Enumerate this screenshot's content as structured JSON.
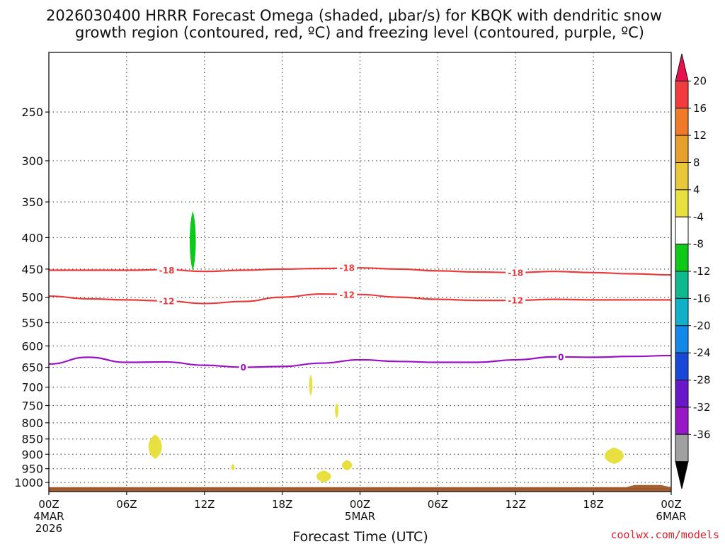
{
  "chart_data": {
    "type": "heatmap",
    "title_line1": "2026030400 HRRR Forecast Omega (shaded, μbar/s) for KBQK with dendritic snow",
    "title_line2": "growth region (contoured, red, ºC) and freezing level (contoured, purple, ºC)",
    "xlabel": "Forecast Time (UTC)",
    "credit": "coolwx.com/models",
    "x_range_hours": [
      0,
      48
    ],
    "y_levels_hpa": [
      250,
      300,
      350,
      400,
      450,
      500,
      550,
      600,
      650,
      700,
      750,
      800,
      850,
      900,
      950,
      1000
    ],
    "y_range_hpa": [
      200,
      1035
    ],
    "x_ticks": [
      {
        "hour": 0,
        "label": "00Z",
        "sub1": "4MAR",
        "sub2": "2026"
      },
      {
        "hour": 6,
        "label": "06Z"
      },
      {
        "hour": 12,
        "label": "12Z"
      },
      {
        "hour": 18,
        "label": "18Z"
      },
      {
        "hour": 24,
        "label": "00Z",
        "sub1": "5MAR"
      },
      {
        "hour": 30,
        "label": "06Z"
      },
      {
        "hour": 36,
        "label": "12Z"
      },
      {
        "hour": 42,
        "label": "18Z"
      },
      {
        "hour": 48,
        "label": "00Z",
        "sub1": "6MAR"
      }
    ],
    "colorbar": {
      "labels": [
        "20",
        "16",
        "12",
        "8",
        "4",
        "-4",
        "-8",
        "-12",
        "-16",
        "-20",
        "-24",
        "-28",
        "-32",
        "-36"
      ],
      "colors": [
        "#e8124f",
        "#f03c3c",
        "#f07a28",
        "#e8a02c",
        "#e8c838",
        "#e8e040",
        "#ffffff",
        "#10c818",
        "#10b890",
        "#10b0c8",
        "#1488e8",
        "#1848d8",
        "#6818c8",
        "#9818c8",
        "#a0a0a0",
        "#000000"
      ]
    },
    "contours": [
      {
        "name": "dgz -18C",
        "label": "-18",
        "color": "#e83c3c",
        "x": [
          0,
          3,
          6,
          9,
          12,
          15,
          18,
          21,
          24,
          27,
          30,
          33,
          36,
          39,
          42,
          45,
          48
        ],
        "p": [
          452,
          452,
          452,
          451,
          454,
          452,
          450,
          449,
          448,
          450,
          453,
          455,
          456,
          454,
          456,
          458,
          460
        ]
      },
      {
        "name": "dgz -12C",
        "label": "-12",
        "color": "#e83c3c",
        "x": [
          0,
          3,
          6,
          9,
          12,
          15,
          18,
          21,
          24,
          27,
          30,
          33,
          36,
          39,
          42,
          45,
          48
        ],
        "p": [
          498,
          503,
          505,
          507,
          512,
          508,
          500,
          494,
          495,
          500,
          504,
          506,
          506,
          504,
          505,
          505,
          505
        ]
      },
      {
        "name": "freezing level 0C",
        "label": "0",
        "color": "#9a10c8",
        "x": [
          0,
          3,
          6,
          9,
          12,
          15,
          18,
          21,
          24,
          27,
          30,
          33,
          36,
          39,
          42,
          45,
          48
        ],
        "p": [
          642,
          626,
          638,
          637,
          645,
          650,
          648,
          640,
          632,
          636,
          638,
          638,
          632,
          625,
          626,
          624,
          622
        ]
      }
    ],
    "contour_labels": [
      {
        "series": 0,
        "x": 9.1,
        "p": 452
      },
      {
        "series": 0,
        "x": 23.0,
        "p": 448
      },
      {
        "series": 0,
        "x": 36.0,
        "p": 456
      },
      {
        "series": 1,
        "x": 9.1,
        "p": 507
      },
      {
        "series": 1,
        "x": 23.0,
        "p": 495
      },
      {
        "series": 1,
        "x": 36.0,
        "p": 506
      },
      {
        "series": 2,
        "x": 15.0,
        "p": 650
      },
      {
        "series": 2,
        "x": 39.5,
        "p": 625
      }
    ],
    "omega_blobs": [
      {
        "x": 11.1,
        "p": 405,
        "dx": 0.25,
        "dp": 45,
        "color": "#10c818",
        "value_range": "-8 to -4"
      },
      {
        "x": 8.2,
        "p": 875,
        "dx": 0.55,
        "dp": 40,
        "color": "#e8e040",
        "value_range": "4 to 8"
      },
      {
        "x": 14.2,
        "p": 945,
        "dx": 0.12,
        "dp": 12,
        "color": "#e8e040",
        "value_range": "4 to 8"
      },
      {
        "x": 20.2,
        "p": 695,
        "dx": 0.12,
        "dp": 28,
        "color": "#e8e040",
        "value_range": "4 to 8"
      },
      {
        "x": 22.2,
        "p": 765,
        "dx": 0.12,
        "dp": 22,
        "color": "#e8e040",
        "value_range": "4 to 8"
      },
      {
        "x": 21.2,
        "p": 978,
        "dx": 0.6,
        "dp": 22,
        "color": "#e8e040",
        "value_range": "4 to 8"
      },
      {
        "x": 23.0,
        "p": 938,
        "dx": 0.42,
        "dp": 18,
        "color": "#e8e040",
        "value_range": "4 to 8"
      },
      {
        "x": 43.6,
        "p": 905,
        "dx": 0.78,
        "dp": 28,
        "color": "#e8e040",
        "value_range": "4 to 8"
      }
    ],
    "surface": {
      "color": "#a05a2c",
      "p_top": 1018
    }
  }
}
